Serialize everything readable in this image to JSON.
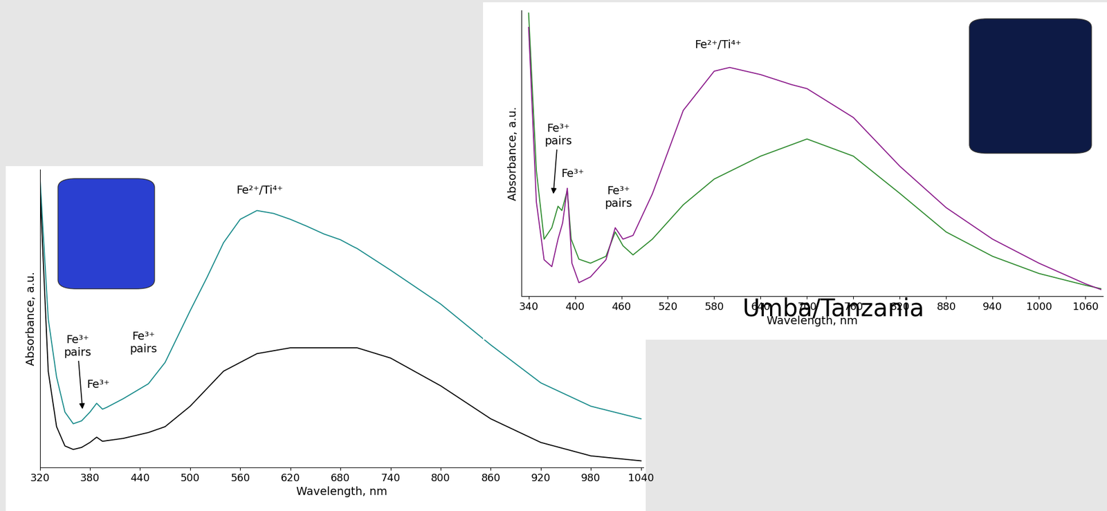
{
  "figure_text": "Umba/Tanzania",
  "chart_data": [
    {
      "type": "line",
      "xlabel": "Wavelength, nm",
      "ylabel": "Absorbance, a.u.",
      "xlim": [
        320,
        1043
      ],
      "ylim": [
        0,
        1.02
      ],
      "xticks": [
        320,
        380,
        440,
        500,
        560,
        620,
        680,
        740,
        800,
        860,
        920,
        980,
        1040
      ],
      "yticks": [],
      "tick_labels": "x",
      "grid": false,
      "series": [
        {
          "color": "#178a8a",
          "x": [
            320,
            330,
            340,
            350,
            360,
            370,
            380,
            388,
            395,
            400,
            420,
            440,
            450,
            470,
            500,
            520,
            540,
            560,
            580,
            600,
            620,
            640,
            660,
            680,
            695,
            700,
            740,
            800,
            860,
            920,
            980,
            1040
          ],
          "values": [
            1.0,
            0.51,
            0.31,
            0.19,
            0.15,
            0.16,
            0.19,
            0.22,
            0.2,
            0.206,
            0.236,
            0.27,
            0.287,
            0.36,
            0.537,
            0.65,
            0.77,
            0.85,
            0.88,
            0.87,
            0.85,
            0.826,
            0.8,
            0.78,
            0.757,
            0.75,
            0.676,
            0.56,
            0.42,
            0.29,
            0.21,
            0.167
          ]
        },
        {
          "color": "#000000",
          "x": [
            320,
            330,
            340,
            350,
            360,
            370,
            380,
            388,
            395,
            420,
            450,
            470,
            500,
            540,
            580,
            620,
            660,
            700,
            740,
            800,
            860,
            920,
            980,
            1040
          ],
          "values": [
            0.965,
            0.33,
            0.14,
            0.074,
            0.062,
            0.069,
            0.086,
            0.104,
            0.09,
            0.1,
            0.12,
            0.14,
            0.21,
            0.33,
            0.39,
            0.41,
            0.41,
            0.41,
            0.375,
            0.28,
            0.167,
            0.086,
            0.04,
            0.023
          ]
        }
      ],
      "annotations": [
        {
          "text": "Fe³⁺\npairs",
          "x": 365,
          "y": 0.375,
          "arrow_x": 371,
          "arrow_y": 0.2
        },
        {
          "text": "Fe³⁺",
          "x": 390,
          "y": 0.266
        },
        {
          "text": "Fe³⁺\npairs",
          "x": 444,
          "y": 0.386
        },
        {
          "text": "Fe²⁺/Ti⁴⁺",
          "x": 583,
          "y": 0.93
        }
      ]
    },
    {
      "type": "line",
      "xlabel": "Wavelength, nm",
      "ylabel": "Absorbance, a.u.",
      "xlim": [
        331,
        1083
      ],
      "ylim": [
        0,
        1.0
      ],
      "xticks": [
        340,
        400,
        460,
        520,
        580,
        640,
        700,
        760,
        820,
        880,
        940,
        1000,
        1060
      ],
      "yticks": [],
      "tick_labels": "x",
      "grid": false,
      "series": [
        {
          "color": "#2e8b2e",
          "x": [
            340,
            350,
            360,
            370,
            378,
            383,
            390,
            395,
            405,
            420,
            440,
            452,
            462,
            475,
            500,
            540,
            580,
            640,
            700,
            760,
            820,
            880,
            940,
            1000,
            1060,
            1080
          ],
          "values": [
            0.99,
            0.44,
            0.2,
            0.24,
            0.315,
            0.3,
            0.37,
            0.2,
            0.13,
            0.116,
            0.14,
            0.225,
            0.177,
            0.145,
            0.2,
            0.32,
            0.41,
            0.49,
            0.55,
            0.49,
            0.36,
            0.225,
            0.14,
            0.08,
            0.039,
            0.027
          ]
        },
        {
          "color": "#8b1a8b",
          "x": [
            340,
            350,
            360,
            370,
            378,
            384,
            390,
            396,
            405,
            420,
            440,
            452,
            462,
            475,
            500,
            540,
            580,
            600,
            640,
            680,
            700,
            760,
            820,
            880,
            940,
            1000,
            1060,
            1080
          ],
          "values": [
            0.94,
            0.33,
            0.128,
            0.104,
            0.2,
            0.257,
            0.378,
            0.116,
            0.048,
            0.068,
            0.128,
            0.24,
            0.2,
            0.213,
            0.358,
            0.65,
            0.787,
            0.8,
            0.775,
            0.74,
            0.726,
            0.625,
            0.455,
            0.31,
            0.2,
            0.116,
            0.044,
            0.024
          ]
        }
      ],
      "annotations": [
        {
          "text": "Fe³⁺\npairs",
          "x": 378,
          "y": 0.523,
          "arrow_x": 372,
          "arrow_y": 0.358
        },
        {
          "text": "Fe³⁺",
          "x": 397,
          "y": 0.41
        },
        {
          "text": "Fe³⁺\npairs",
          "x": 456,
          "y": 0.305
        },
        {
          "text": "Fe²⁺/Ti⁴⁺",
          "x": 585,
          "y": 0.86
        }
      ]
    }
  ]
}
